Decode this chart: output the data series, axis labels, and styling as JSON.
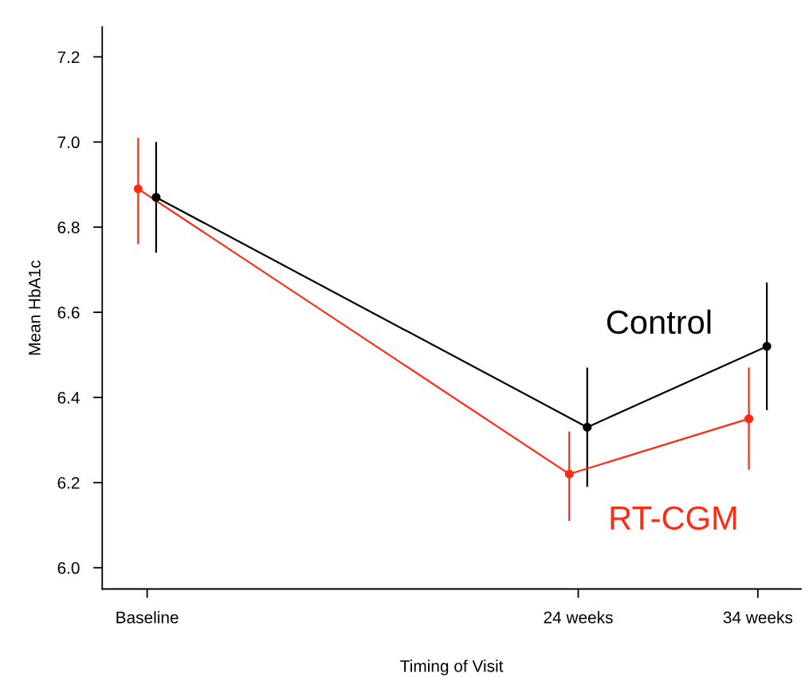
{
  "chart_data": {
    "type": "line",
    "xlabel": "Timing of Visit",
    "ylabel": "Mean HbA1c",
    "xlim": [
      -2.5,
      36.4
    ],
    "xticks": [
      {
        "value": 0,
        "label": "Baseline"
      },
      {
        "value": 24,
        "label": "24 weeks"
      },
      {
        "value": 34,
        "label": "34 weeks"
      }
    ],
    "ylim": [
      5.95,
      7.27
    ],
    "yticks": [
      {
        "value": 6,
        "label": "6.0"
      },
      6.2,
      6.4,
      6.6,
      6.8,
      {
        "value": 7,
        "label": "7.0"
      },
      7.2
    ],
    "series": [
      {
        "name": "RT-CGM",
        "color": "#ff2a12",
        "x": [
          -0.5,
          23.5,
          33.5
        ],
        "values": [
          6.89,
          6.22,
          6.35
        ],
        "errors": [
          [
            6.76,
            7.01
          ],
          [
            6.11,
            6.32
          ],
          [
            6.23,
            6.47
          ]
        ]
      },
      {
        "name": "Control",
        "color": "#000000",
        "x": [
          0.5,
          24.5,
          34.5
        ],
        "values": [
          6.87,
          6.33,
          6.52
        ],
        "errors": [
          [
            6.74,
            7.0
          ],
          [
            6.19,
            6.47
          ],
          [
            6.37,
            6.67
          ]
        ]
      }
    ],
    "marker": "circle",
    "line_style": "solid",
    "grid": false,
    "legend": false
  }
}
